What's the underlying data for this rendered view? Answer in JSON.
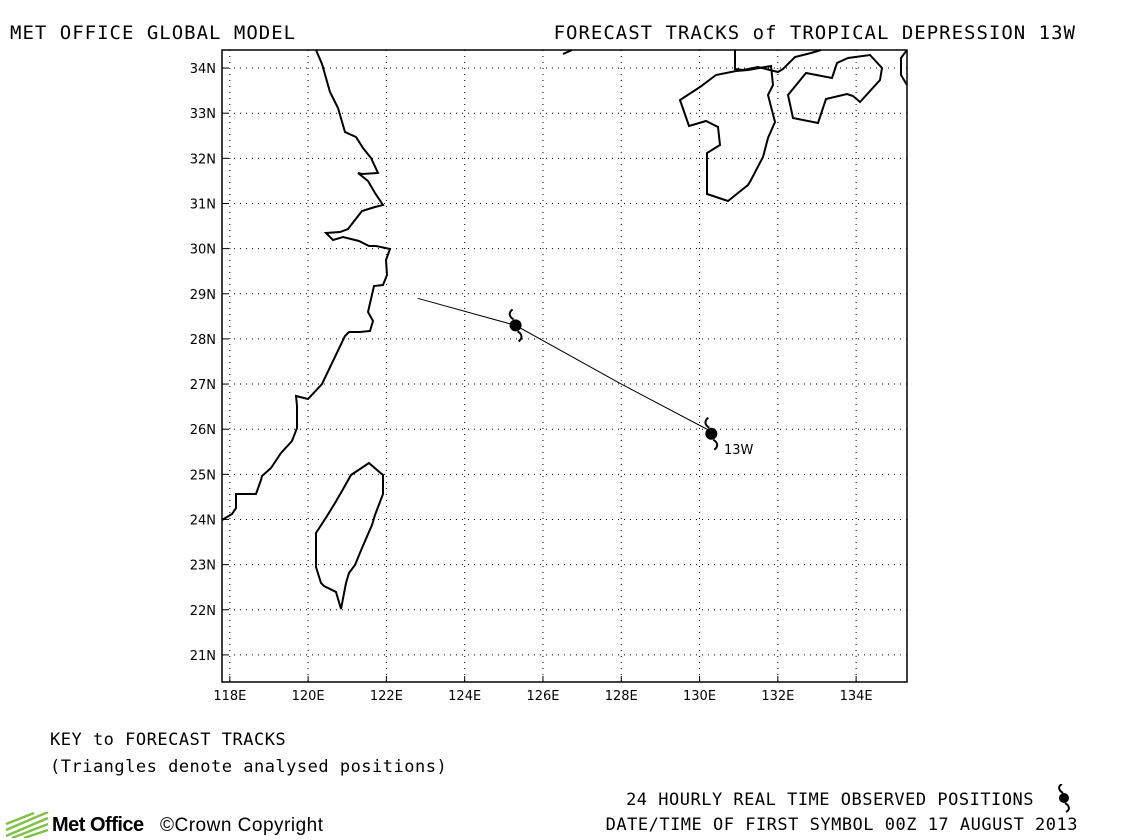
{
  "header": {
    "left": "MET OFFICE GLOBAL MODEL",
    "right": "FORECAST TRACKS of TROPICAL DEPRESSION 13W"
  },
  "map": {
    "lon_range": [
      117.8,
      135.3
    ],
    "lat_range": [
      20.4,
      34.4
    ],
    "lon_ticks": [
      "118E",
      "120E",
      "122E",
      "124E",
      "126E",
      "128E",
      "130E",
      "132E",
      "134E"
    ],
    "lat_ticks": [
      "21N",
      "22N",
      "23N",
      "24N",
      "25N",
      "26N",
      "27N",
      "28N",
      "29N",
      "30N",
      "31N",
      "32N",
      "33N",
      "34N"
    ],
    "grid": "dotted",
    "storm_label": "13W",
    "track": [
      [
        130.3,
        25.95
      ],
      [
        128.0,
        27.0
      ],
      [
        125.3,
        28.3
      ],
      [
        122.8,
        28.9
      ]
    ],
    "observed_positions": [
      [
        130.3,
        25.9
      ],
      [
        125.3,
        28.3
      ]
    ]
  },
  "key": {
    "title": "KEY to FORECAST TRACKS",
    "subtitle": "(Triangles denote analysed positions)"
  },
  "footer": {
    "logo_text": "Met Office",
    "copyright": "©Crown Copyright",
    "observed_label": "24 HOURLY REAL TIME OBSERVED POSITIONS",
    "date_label": "DATE/TIME OF FIRST SYMBOL 00Z 17 AUGUST 2013"
  },
  "colors": {
    "line": "#000000",
    "grid": "#000000",
    "background": "#ffffff",
    "logo_green": "#7dc242"
  }
}
